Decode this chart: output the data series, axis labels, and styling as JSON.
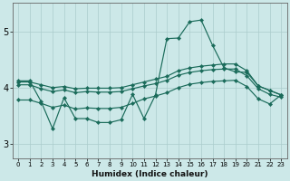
{
  "bg_color": "#cce8e8",
  "grid_color": "#aacccc",
  "line_color": "#1a6b5a",
  "xlabel": "Humidex (Indice chaleur)",
  "xlim": [
    -0.5,
    23.5
  ],
  "ylim": [
    2.75,
    5.5
  ],
  "yticks": [
    3,
    4,
    5
  ],
  "xticks": [
    0,
    1,
    2,
    3,
    4,
    5,
    6,
    7,
    8,
    9,
    10,
    11,
    12,
    13,
    14,
    15,
    16,
    17,
    18,
    19,
    20,
    21,
    22,
    23
  ],
  "series": [
    {
      "x": [
        0,
        1,
        2,
        3,
        4,
        5,
        6,
        7,
        8,
        9,
        10,
        11,
        12,
        13,
        14,
        15,
        16,
        17,
        18,
        19,
        20,
        21,
        22,
        23
      ],
      "y": [
        4.12,
        4.12,
        3.75,
        3.27,
        3.82,
        3.45,
        3.45,
        3.38,
        3.38,
        3.43,
        3.88,
        3.45,
        3.87,
        4.87,
        4.88,
        5.17,
        5.2,
        4.75,
        4.35,
        4.28,
        4.27,
        4.03,
        3.95,
        3.87
      ]
    },
    {
      "x": [
        0,
        1,
        2,
        3,
        4,
        5,
        6,
        7,
        8,
        9,
        10,
        11,
        12,
        13,
        14,
        15,
        16,
        17,
        18,
        19,
        20,
        21,
        22,
        23
      ],
      "y": [
        4.1,
        4.1,
        4.05,
        4.0,
        4.02,
        3.98,
        3.99,
        3.99,
        3.99,
        4.0,
        4.05,
        4.1,
        4.15,
        4.2,
        4.3,
        4.35,
        4.38,
        4.4,
        4.42,
        4.42,
        4.3,
        4.03,
        3.95,
        3.87
      ]
    },
    {
      "x": [
        0,
        1,
        2,
        3,
        4,
        5,
        6,
        7,
        8,
        9,
        10,
        11,
        12,
        13,
        14,
        15,
        16,
        17,
        18,
        19,
        20,
        21,
        22,
        23
      ],
      "y": [
        4.05,
        4.05,
        3.98,
        3.93,
        3.96,
        3.91,
        3.93,
        3.92,
        3.92,
        3.93,
        3.98,
        4.03,
        4.07,
        4.13,
        4.22,
        4.27,
        4.3,
        4.32,
        4.33,
        4.33,
        4.21,
        3.98,
        3.88,
        3.83
      ]
    },
    {
      "x": [
        0,
        1,
        2,
        3,
        4,
        5,
        6,
        7,
        8,
        9,
        10,
        11,
        12,
        13,
        14,
        15,
        16,
        17,
        18,
        19,
        20,
        21,
        22,
        23
      ],
      "y": [
        3.78,
        3.78,
        3.72,
        3.65,
        3.69,
        3.62,
        3.64,
        3.63,
        3.63,
        3.65,
        3.72,
        3.8,
        3.85,
        3.91,
        4.0,
        4.06,
        4.09,
        4.11,
        4.12,
        4.13,
        4.02,
        3.8,
        3.71,
        3.87
      ]
    }
  ]
}
